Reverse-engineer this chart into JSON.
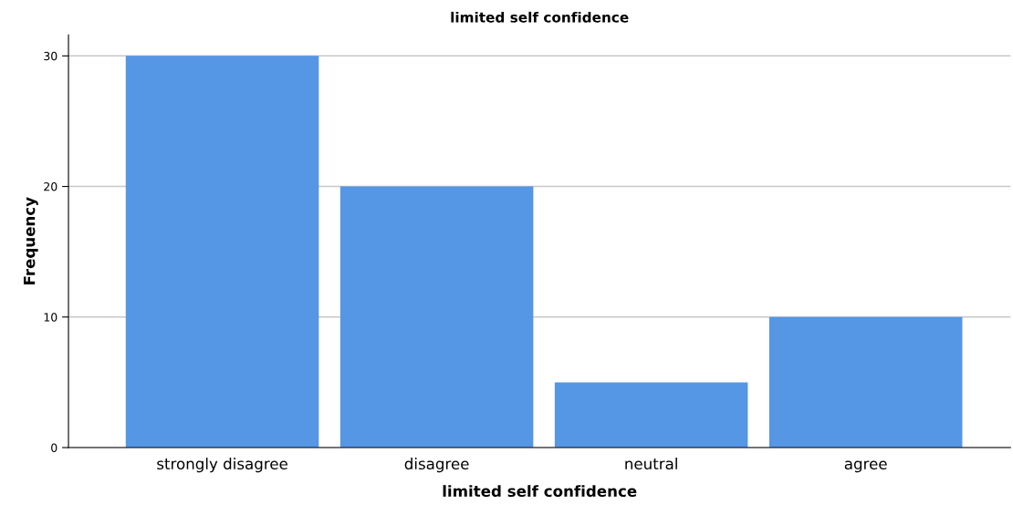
{
  "chart_data": {
    "type": "bar",
    "title": "limited self confidence",
    "xlabel": "limited self confidence",
    "ylabel": "Frequency",
    "categories": [
      "strongly disagree",
      "disagree",
      "neutral",
      "agree"
    ],
    "values": [
      30,
      20,
      5,
      10
    ],
    "color": "#5596e5",
    "ylim": [
      0,
      31.6
    ],
    "yticks": [
      0,
      10,
      20,
      30
    ],
    "grid": "y"
  }
}
